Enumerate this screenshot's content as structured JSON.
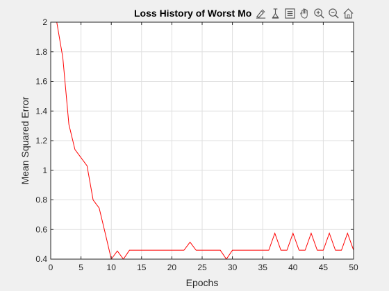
{
  "chart_data": {
    "type": "line",
    "title": "Loss History of Worst Mo",
    "xlabel": "Epochs",
    "ylabel": "Mean Squared Error",
    "xlim": [
      0,
      50
    ],
    "ylim": [
      0.4,
      2
    ],
    "xticks": [
      0,
      5,
      10,
      15,
      20,
      25,
      30,
      35,
      40,
      45,
      50
    ],
    "yticks": [
      0.4,
      0.6,
      0.8,
      1,
      1.2,
      1.4,
      1.6,
      1.8,
      2
    ],
    "xtick_labels": [
      "0",
      "5",
      "10",
      "15",
      "20",
      "25",
      "30",
      "35",
      "40",
      "45",
      "50"
    ],
    "ytick_labels": [
      "0.4",
      "0.6",
      "0.8",
      "1",
      "1.2",
      "1.4",
      "1.6",
      "1.8",
      "2"
    ],
    "grid": true,
    "series": [
      {
        "color": "#ff0000",
        "x": [
          1,
          2,
          3,
          4,
          5,
          6,
          7,
          8,
          9,
          10,
          11,
          12,
          13,
          14,
          15,
          16,
          17,
          18,
          19,
          20,
          21,
          22,
          23,
          24,
          25,
          26,
          27,
          28,
          29,
          30,
          31,
          32,
          33,
          34,
          35,
          36,
          37,
          38,
          39,
          40,
          41,
          42,
          43,
          44,
          45,
          46,
          47,
          48,
          49,
          50
        ],
        "y": [
          2.0,
          1.76,
          1.31,
          1.14,
          1.085,
          1.03,
          0.8,
          0.745,
          0.575,
          0.4,
          0.455,
          0.4,
          0.46,
          0.46,
          0.46,
          0.46,
          0.46,
          0.46,
          0.46,
          0.46,
          0.46,
          0.46,
          0.515,
          0.46,
          0.46,
          0.46,
          0.46,
          0.46,
          0.4,
          0.46,
          0.46,
          0.46,
          0.46,
          0.46,
          0.46,
          0.46,
          0.575,
          0.46,
          0.46,
          0.575,
          0.46,
          0.46,
          0.575,
          0.46,
          0.46,
          0.575,
          0.46,
          0.46,
          0.575,
          0.46
        ]
      }
    ]
  },
  "toolbar": {
    "icons": [
      "brush-icon",
      "data-cursor-icon",
      "legend-icon",
      "pan-icon",
      "zoom-in-icon",
      "zoom-out-icon",
      "home-icon"
    ]
  }
}
